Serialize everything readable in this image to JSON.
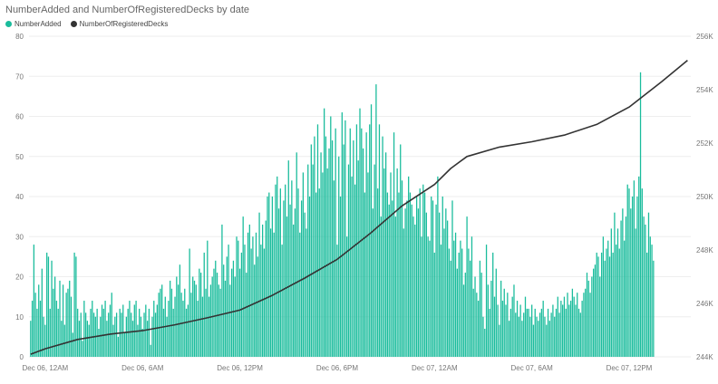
{
  "chart_data": {
    "type": "bar+line",
    "title": "NumberAdded and NumberOfRegisteredDecks by date",
    "legend": [
      {
        "name": "NumberAdded",
        "color": "#1ABC9C"
      },
      {
        "name": "NumberOfRegisteredDecks",
        "color": "#333333"
      }
    ],
    "x_ticks": [
      "Dec 06, 12AM",
      "Dec 06, 6AM",
      "Dec 06, 12PM",
      "Dec 06, 6PM",
      "Dec 07, 12AM",
      "Dec 07, 6AM",
      "Dec 07, 12PM"
    ],
    "x_range_hours": [
      -1,
      39.8
    ],
    "y_left": {
      "min": 0,
      "max": 80,
      "ticks": [
        0,
        10,
        20,
        30,
        40,
        50,
        60,
        70,
        80
      ]
    },
    "y_right": {
      "min": 244000,
      "max": 256000,
      "ticks": [
        "244K",
        "246K",
        "248K",
        "250K",
        "252K",
        "254K",
        "256K"
      ],
      "tick_values": [
        244000,
        246000,
        248000,
        250000,
        252000,
        254000,
        256000
      ]
    },
    "series": [
      {
        "name": "NumberAdded",
        "axis": "left",
        "start_hour": -0.9,
        "step_hours": 0.1,
        "values": [
          9,
          14,
          28,
          16,
          12,
          18,
          14,
          22,
          10,
          8,
          26,
          25,
          12,
          24,
          17,
          20,
          14,
          12,
          19,
          9,
          18,
          8,
          16,
          17,
          19,
          15,
          6,
          26,
          25,
          12,
          9,
          11,
          4,
          14,
          11,
          9,
          8,
          12,
          14,
          11,
          10,
          12,
          7,
          10,
          13,
          12,
          14,
          9,
          11,
          13,
          16,
          8,
          10,
          11,
          5,
          12,
          11,
          13,
          6,
          10,
          12,
          14,
          11,
          9,
          13,
          14,
          8,
          12,
          10,
          7,
          11,
          13,
          9,
          12,
          3,
          10,
          14,
          11,
          13,
          16,
          17,
          18,
          12,
          15,
          10,
          14,
          19,
          17,
          12,
          15,
          20,
          18,
          23,
          16,
          14,
          17,
          12,
          13,
          27,
          16,
          20,
          19,
          18,
          14,
          22,
          21,
          15,
          26,
          17,
          29,
          15,
          18,
          20,
          22,
          24,
          21,
          18,
          17,
          33,
          23,
          19,
          25,
          28,
          18,
          22,
          24,
          20,
          30,
          29,
          22,
          26,
          35,
          28,
          21,
          31,
          33,
          27,
          30,
          23,
          31,
          25,
          36,
          28,
          33,
          27,
          34,
          40,
          41,
          32,
          40,
          31,
          43,
          45,
          37,
          42,
          28,
          39,
          43,
          35,
          49,
          38,
          44,
          33,
          37,
          51,
          42,
          31,
          39,
          46,
          36,
          32,
          48,
          40,
          53,
          48,
          55,
          41,
          58,
          42,
          51,
          46,
          62,
          55,
          47,
          52,
          60,
          54,
          44,
          57,
          28,
          50,
          40,
          61,
          53,
          59,
          30,
          48,
          57,
          45,
          54,
          43,
          58,
          49,
          62,
          57,
          52,
          41,
          56,
          46,
          58,
          63,
          37,
          48,
          68,
          42,
          58,
          35,
          55,
          47,
          51,
          41,
          38,
          46,
          39,
          56,
          35,
          47,
          41,
          53,
          44,
          32,
          37,
          39,
          45,
          41,
          38,
          35,
          33,
          40,
          37,
          42,
          30,
          43,
          41,
          36,
          30,
          29,
          40,
          39,
          26,
          38,
          45,
          36,
          28,
          40,
          32,
          37,
          34,
          27,
          24,
          39,
          29,
          31,
          22,
          26,
          29,
          27,
          18,
          21,
          35,
          27,
          24,
          30,
          17,
          20,
          16,
          14,
          24,
          21,
          10,
          7,
          28,
          18,
          12,
          19,
          26,
          15,
          22,
          13,
          8,
          19,
          14,
          17,
          13,
          16,
          9,
          12,
          15,
          18,
          11,
          14,
          10,
          13,
          9,
          11,
          15,
          12,
          12,
          10,
          13,
          8,
          12,
          10,
          9,
          11,
          12,
          14,
          10,
          8,
          12,
          9,
          11,
          13,
          10,
          12,
          15,
          11,
          14,
          13,
          15,
          12,
          16,
          13,
          14,
          17,
          15,
          13,
          16,
          12,
          11,
          14,
          16,
          17,
          21,
          19,
          16,
          20,
          22,
          23,
          26,
          25,
          20,
          26,
          30,
          24,
          27,
          29,
          25,
          32,
          26,
          36,
          28,
          32,
          27,
          34,
          37,
          29,
          35,
          43,
          42,
          37,
          40,
          44,
          32,
          40,
          45,
          71,
          42,
          35,
          33,
          26,
          36,
          30,
          28,
          24
        ]
      },
      {
        "name": "NumberOfRegisteredDecks",
        "axis": "right",
        "points_hour_value": [
          [
            -0.9,
            244100
          ],
          [
            0,
            244300
          ],
          [
            2,
            244650
          ],
          [
            4,
            244850
          ],
          [
            6,
            244980
          ],
          [
            8,
            245200
          ],
          [
            10,
            245460
          ],
          [
            12,
            245750
          ],
          [
            14,
            246300
          ],
          [
            16,
            246950
          ],
          [
            18,
            247650
          ],
          [
            20,
            248600
          ],
          [
            22,
            249650
          ],
          [
            24,
            250450
          ],
          [
            25,
            251050
          ],
          [
            26,
            251500
          ],
          [
            28,
            251850
          ],
          [
            30,
            252050
          ],
          [
            32,
            252300
          ],
          [
            34,
            252700
          ],
          [
            36,
            253350
          ],
          [
            38,
            254300
          ],
          [
            39.6,
            255100
          ]
        ]
      }
    ]
  }
}
